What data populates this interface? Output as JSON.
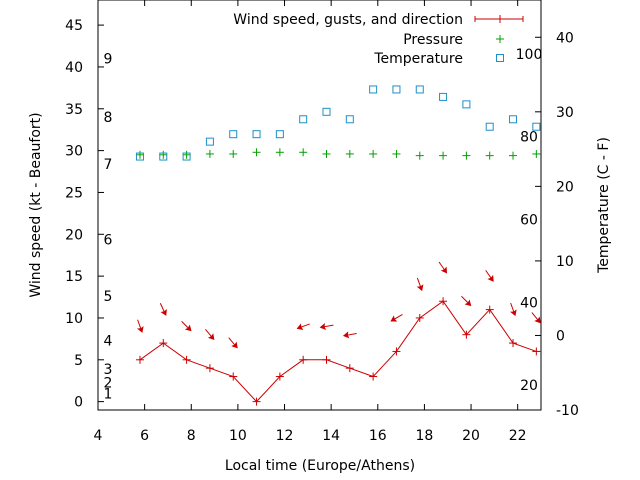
{
  "chart_data": {
    "type": "line",
    "xlabel": "Local time (Europe/Athens)",
    "ylabel": "Wind speed (kt - Beaufort)",
    "y2label": "Temperature (C - F)",
    "xlim": [
      4,
      23
    ],
    "ylim": [
      -1,
      48
    ],
    "y2lim": [
      -10,
      45
    ],
    "xticks": [
      "4",
      "6",
      "8",
      "10",
      "12",
      "14",
      "16",
      "18",
      "20",
      "22"
    ],
    "yticks": [
      "0",
      "5",
      "10",
      "15",
      "20",
      "25",
      "30",
      "35",
      "40",
      "45"
    ],
    "y2ticks": [
      "-10",
      "0",
      "10",
      "20",
      "30",
      "40"
    ],
    "beaufort_labels": [
      "1",
      "2",
      "3",
      "4",
      "5",
      "6",
      "7",
      "8",
      "9"
    ],
    "fahrenheit_labels": [
      "20",
      "40",
      "60",
      "80",
      "100"
    ],
    "legend_position": "top-right",
    "series": [
      {
        "name": "Wind speed, gusts, and direction",
        "color": "#cc0000",
        "marker": "plus",
        "x": [
          5.8,
          6.8,
          7.8,
          8.8,
          9.8,
          10.8,
          11.8,
          12.8,
          13.8,
          14.8,
          15.8,
          16.8,
          17.8,
          18.8,
          19.8,
          20.8,
          21.8,
          22.8
        ],
        "values": [
          5,
          7,
          5,
          4,
          3,
          0,
          3,
          5,
          5,
          4,
          3,
          6,
          10,
          12,
          8,
          11,
          7,
          6
        ],
        "direction_arrows": true
      },
      {
        "name": "Pressure",
        "color": "#00a000",
        "marker": "plus",
        "x": [
          5.8,
          6.8,
          7.8,
          8.8,
          9.8,
          10.8,
          11.8,
          12.8,
          13.8,
          14.8,
          15.8,
          16.8,
          17.8,
          18.8,
          19.8,
          20.8,
          21.8,
          22.8
        ],
        "values": [
          29.5,
          29.5,
          29.5,
          29.6,
          29.6,
          29.8,
          29.8,
          29.8,
          29.6,
          29.6,
          29.6,
          29.6,
          29.4,
          29.4,
          29.4,
          29.4,
          29.4,
          29.6
        ]
      },
      {
        "name": "Temperature",
        "color": "#1e90c8",
        "marker": "square",
        "axis": "y2",
        "x": [
          5.8,
          6.8,
          7.8,
          8.8,
          9.8,
          10.8,
          11.8,
          12.8,
          13.8,
          14.8,
          15.8,
          16.8,
          17.8,
          18.8,
          19.8,
          20.8,
          21.8,
          22.8
        ],
        "values": [
          24,
          24,
          24,
          26,
          27,
          27,
          27,
          29,
          30,
          29,
          33,
          33,
          33,
          32,
          31,
          28,
          29,
          28
        ]
      }
    ],
    "wind_arrow_angles_deg": [
      -110,
      -115,
      -135,
      -130,
      -130,
      null,
      null,
      -20,
      -10,
      -10,
      null,
      -30,
      -110,
      -125,
      -135,
      -125,
      -110,
      -130
    ]
  }
}
